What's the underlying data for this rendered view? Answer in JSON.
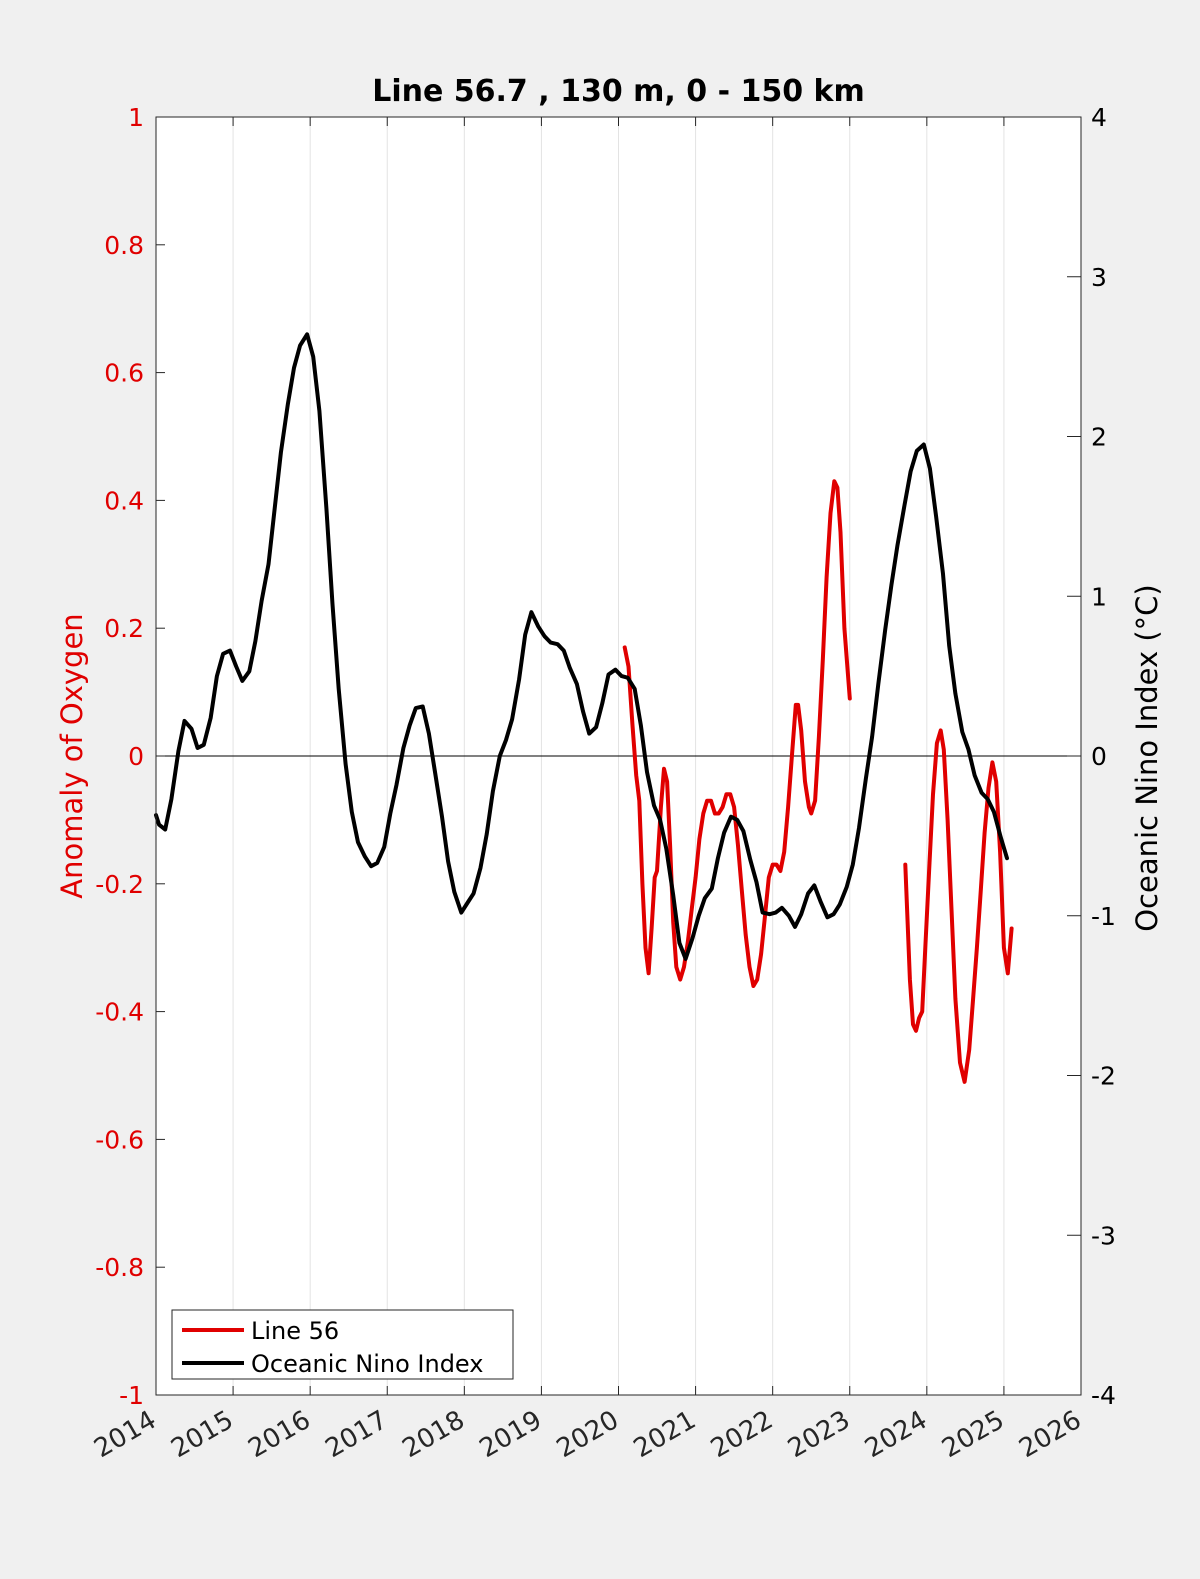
{
  "chart_data": {
    "type": "line",
    "title": "Line 56.7 , 130 m, 0 - 150 km",
    "xlabel": "",
    "ylabel_left": "Anomaly of Oxygen",
    "ylabel_right": "Oceanic Nino Index (°C)",
    "xlim": [
      2014,
      2026
    ],
    "ylim_left": [
      -1,
      1
    ],
    "ylim_right": [
      -4,
      4
    ],
    "x_ticks": [
      2014,
      2015,
      2016,
      2017,
      2018,
      2019,
      2020,
      2021,
      2022,
      2023,
      2024,
      2025,
      2026
    ],
    "x_tick_labels": [
      "2014",
      "2015",
      "2016",
      "2017",
      "2018",
      "2019",
      "2020",
      "2021",
      "2022",
      "2023",
      "2024",
      "2025",
      "2026"
    ],
    "y_left_ticks": [
      -1,
      -0.8,
      -0.6,
      -0.4,
      -0.2,
      0,
      0.2,
      0.4,
      0.6,
      0.8,
      1
    ],
    "y_left_tick_labels": [
      "-1",
      "-0.8",
      "-0.6",
      "-0.4",
      "-0.2",
      "0",
      "0.2",
      "0.4",
      "0.6",
      "0.8",
      "1"
    ],
    "y_right_ticks": [
      -4,
      -3,
      -2,
      -1,
      0,
      1,
      2,
      3,
      4
    ],
    "y_right_tick_labels": [
      "-4",
      "-3",
      "-2",
      "-1",
      "0",
      "1",
      "2",
      "3",
      "4"
    ],
    "grid": "vertical",
    "zero_line": true,
    "legend_position": "bottom-left",
    "series": [
      {
        "name": "Line 56",
        "axis": "left",
        "color": "#e00000",
        "segments": [
          [
            [
              2020.08,
              0.17
            ],
            [
              2020.13,
              0.14
            ],
            [
              2020.18,
              0.05
            ],
            [
              2020.23,
              -0.03
            ],
            [
              2020.27,
              -0.07
            ],
            [
              2020.31,
              -0.2
            ],
            [
              2020.35,
              -0.3
            ],
            [
              2020.39,
              -0.34
            ],
            [
              2020.43,
              -0.27
            ],
            [
              2020.47,
              -0.19
            ],
            [
              2020.5,
              -0.18
            ],
            [
              2020.55,
              -0.08
            ],
            [
              2020.59,
              -0.02
            ],
            [
              2020.63,
              -0.04
            ],
            [
              2020.67,
              -0.14
            ],
            [
              2020.71,
              -0.26
            ],
            [
              2020.75,
              -0.33
            ],
            [
              2020.8,
              -0.35
            ],
            [
              2020.85,
              -0.33
            ],
            [
              2020.9,
              -0.29
            ],
            [
              2020.95,
              -0.24
            ],
            [
              2021.0,
              -0.19
            ],
            [
              2021.05,
              -0.13
            ],
            [
              2021.1,
              -0.09
            ],
            [
              2021.15,
              -0.07
            ],
            [
              2021.2,
              -0.07
            ],
            [
              2021.25,
              -0.09
            ],
            [
              2021.3,
              -0.09
            ],
            [
              2021.35,
              -0.08
            ],
            [
              2021.4,
              -0.06
            ],
            [
              2021.45,
              -0.06
            ],
            [
              2021.5,
              -0.08
            ],
            [
              2021.55,
              -0.14
            ],
            [
              2021.6,
              -0.21
            ],
            [
              2021.65,
              -0.28
            ],
            [
              2021.7,
              -0.33
            ],
            [
              2021.75,
              -0.36
            ],
            [
              2021.8,
              -0.35
            ],
            [
              2021.85,
              -0.31
            ],
            [
              2021.9,
              -0.25
            ],
            [
              2021.95,
              -0.19
            ],
            [
              2022.0,
              -0.17
            ],
            [
              2022.05,
              -0.17
            ],
            [
              2022.1,
              -0.18
            ],
            [
              2022.15,
              -0.15
            ],
            [
              2022.2,
              -0.08
            ],
            [
              2022.25,
              0.0
            ],
            [
              2022.3,
              0.08
            ],
            [
              2022.33,
              0.08
            ],
            [
              2022.37,
              0.04
            ],
            [
              2022.42,
              -0.04
            ],
            [
              2022.47,
              -0.08
            ],
            [
              2022.5,
              -0.09
            ],
            [
              2022.55,
              -0.07
            ],
            [
              2022.6,
              0.03
            ],
            [
              2022.65,
              0.15
            ],
            [
              2022.7,
              0.28
            ],
            [
              2022.75,
              0.38
            ],
            [
              2022.8,
              0.43
            ],
            [
              2022.84,
              0.42
            ],
            [
              2022.88,
              0.35
            ],
            [
              2022.93,
              0.2
            ],
            [
              2023.0,
              0.09
            ]
          ],
          [
            [
              2023.72,
              -0.17
            ],
            [
              2023.75,
              -0.26
            ],
            [
              2023.78,
              -0.35
            ],
            [
              2023.82,
              -0.42
            ],
            [
              2023.86,
              -0.43
            ],
            [
              2023.9,
              -0.41
            ],
            [
              2023.94,
              -0.4
            ],
            [
              2023.98,
              -0.3
            ],
            [
              2024.03,
              -0.18
            ],
            [
              2024.08,
              -0.06
            ],
            [
              2024.13,
              0.02
            ],
            [
              2024.18,
              0.04
            ],
            [
              2024.22,
              0.01
            ],
            [
              2024.27,
              -0.1
            ],
            [
              2024.32,
              -0.24
            ],
            [
              2024.37,
              -0.38
            ],
            [
              2024.43,
              -0.48
            ],
            [
              2024.49,
              -0.51
            ],
            [
              2024.55,
              -0.46
            ],
            [
              2024.6,
              -0.38
            ],
            [
              2024.65,
              -0.3
            ],
            [
              2024.7,
              -0.21
            ],
            [
              2024.75,
              -0.12
            ],
            [
              2024.8,
              -0.05
            ],
            [
              2024.85,
              -0.01
            ],
            [
              2024.9,
              -0.04
            ],
            [
              2024.95,
              -0.15
            ],
            [
              2025.0,
              -0.3
            ],
            [
              2025.05,
              -0.34
            ],
            [
              2025.1,
              -0.27
            ]
          ]
        ]
      },
      {
        "name": "Oceanic Nino Index",
        "axis": "right",
        "color": "#000000",
        "segments": [
          [
            [
              2014.0,
              -0.37
            ],
            [
              2014.04,
              -0.43
            ],
            [
              2014.12,
              -0.46
            ],
            [
              2014.2,
              -0.27
            ],
            [
              2014.29,
              0.03
            ],
            [
              2014.37,
              0.22
            ],
            [
              2014.46,
              0.17
            ],
            [
              2014.54,
              0.05
            ],
            [
              2014.62,
              0.07
            ],
            [
              2014.71,
              0.24
            ],
            [
              2014.79,
              0.5
            ],
            [
              2014.87,
              0.64
            ],
            [
              2014.96,
              0.66
            ],
            [
              2015.04,
              0.56
            ],
            [
              2015.12,
              0.47
            ],
            [
              2015.21,
              0.53
            ],
            [
              2015.29,
              0.72
            ],
            [
              2015.37,
              0.97
            ],
            [
              2015.46,
              1.2
            ],
            [
              2015.54,
              1.55
            ],
            [
              2015.62,
              1.9
            ],
            [
              2015.71,
              2.2
            ],
            [
              2015.79,
              2.43
            ],
            [
              2015.87,
              2.57
            ],
            [
              2015.96,
              2.64
            ],
            [
              2016.04,
              2.5
            ],
            [
              2016.12,
              2.16
            ],
            [
              2016.21,
              1.55
            ],
            [
              2016.29,
              0.95
            ],
            [
              2016.37,
              0.42
            ],
            [
              2016.46,
              -0.05
            ],
            [
              2016.54,
              -0.35
            ],
            [
              2016.62,
              -0.54
            ],
            [
              2016.71,
              -0.63
            ],
            [
              2016.79,
              -0.69
            ],
            [
              2016.87,
              -0.67
            ],
            [
              2016.96,
              -0.57
            ],
            [
              2017.04,
              -0.36
            ],
            [
              2017.12,
              -0.18
            ],
            [
              2017.21,
              0.05
            ],
            [
              2017.29,
              0.19
            ],
            [
              2017.37,
              0.3
            ],
            [
              2017.46,
              0.31
            ],
            [
              2017.54,
              0.14
            ],
            [
              2017.62,
              -0.1
            ],
            [
              2017.71,
              -0.38
            ],
            [
              2017.79,
              -0.66
            ],
            [
              2017.87,
              -0.85
            ],
            [
              2017.96,
              -0.98
            ],
            [
              2018.04,
              -0.92
            ],
            [
              2018.12,
              -0.86
            ],
            [
              2018.21,
              -0.7
            ],
            [
              2018.29,
              -0.49
            ],
            [
              2018.37,
              -0.22
            ],
            [
              2018.46,
              0.0
            ],
            [
              2018.54,
              0.1
            ],
            [
              2018.62,
              0.23
            ],
            [
              2018.71,
              0.48
            ],
            [
              2018.79,
              0.76
            ],
            [
              2018.87,
              0.9
            ],
            [
              2018.96,
              0.81
            ],
            [
              2019.04,
              0.75
            ],
            [
              2019.12,
              0.71
            ],
            [
              2019.21,
              0.7
            ],
            [
              2019.29,
              0.66
            ],
            [
              2019.37,
              0.55
            ],
            [
              2019.46,
              0.45
            ],
            [
              2019.54,
              0.28
            ],
            [
              2019.62,
              0.14
            ],
            [
              2019.71,
              0.18
            ],
            [
              2019.79,
              0.33
            ],
            [
              2019.87,
              0.51
            ],
            [
              2019.96,
              0.54
            ],
            [
              2020.04,
              0.5
            ],
            [
              2020.12,
              0.49
            ],
            [
              2020.21,
              0.42
            ],
            [
              2020.29,
              0.19
            ],
            [
              2020.37,
              -0.1
            ],
            [
              2020.46,
              -0.31
            ],
            [
              2020.54,
              -0.4
            ],
            [
              2020.62,
              -0.58
            ],
            [
              2020.71,
              -0.87
            ],
            [
              2020.79,
              -1.17
            ],
            [
              2020.87,
              -1.27
            ],
            [
              2020.96,
              -1.14
            ],
            [
              2021.04,
              -1.0
            ],
            [
              2021.12,
              -0.89
            ],
            [
              2021.21,
              -0.83
            ],
            [
              2021.29,
              -0.64
            ],
            [
              2021.37,
              -0.48
            ],
            [
              2021.46,
              -0.38
            ],
            [
              2021.54,
              -0.4
            ],
            [
              2021.62,
              -0.47
            ],
            [
              2021.71,
              -0.65
            ],
            [
              2021.79,
              -0.79
            ],
            [
              2021.87,
              -0.98
            ],
            [
              2021.96,
              -0.99
            ],
            [
              2022.04,
              -0.98
            ],
            [
              2022.12,
              -0.95
            ],
            [
              2022.21,
              -1.0
            ],
            [
              2022.29,
              -1.07
            ],
            [
              2022.37,
              -0.99
            ],
            [
              2022.46,
              -0.86
            ],
            [
              2022.54,
              -0.81
            ],
            [
              2022.62,
              -0.91
            ],
            [
              2022.71,
              -1.01
            ],
            [
              2022.79,
              -0.99
            ],
            [
              2022.87,
              -0.93
            ],
            [
              2022.96,
              -0.82
            ],
            [
              2023.04,
              -0.68
            ],
            [
              2023.12,
              -0.45
            ],
            [
              2023.21,
              -0.14
            ],
            [
              2023.29,
              0.12
            ],
            [
              2023.37,
              0.45
            ],
            [
              2023.46,
              0.79
            ],
            [
              2023.54,
              1.07
            ],
            [
              2023.62,
              1.32
            ],
            [
              2023.71,
              1.57
            ],
            [
              2023.79,
              1.78
            ],
            [
              2023.87,
              1.91
            ],
            [
              2023.96,
              1.95
            ],
            [
              2024.04,
              1.8
            ],
            [
              2024.12,
              1.5
            ],
            [
              2024.21,
              1.14
            ],
            [
              2024.29,
              0.69
            ],
            [
              2024.37,
              0.39
            ],
            [
              2024.46,
              0.15
            ],
            [
              2024.54,
              0.04
            ],
            [
              2024.62,
              -0.12
            ],
            [
              2024.71,
              -0.23
            ],
            [
              2024.79,
              -0.27
            ],
            [
              2024.87,
              -0.35
            ],
            [
              2024.96,
              -0.51
            ],
            [
              2025.04,
              -0.64
            ]
          ]
        ]
      }
    ]
  }
}
